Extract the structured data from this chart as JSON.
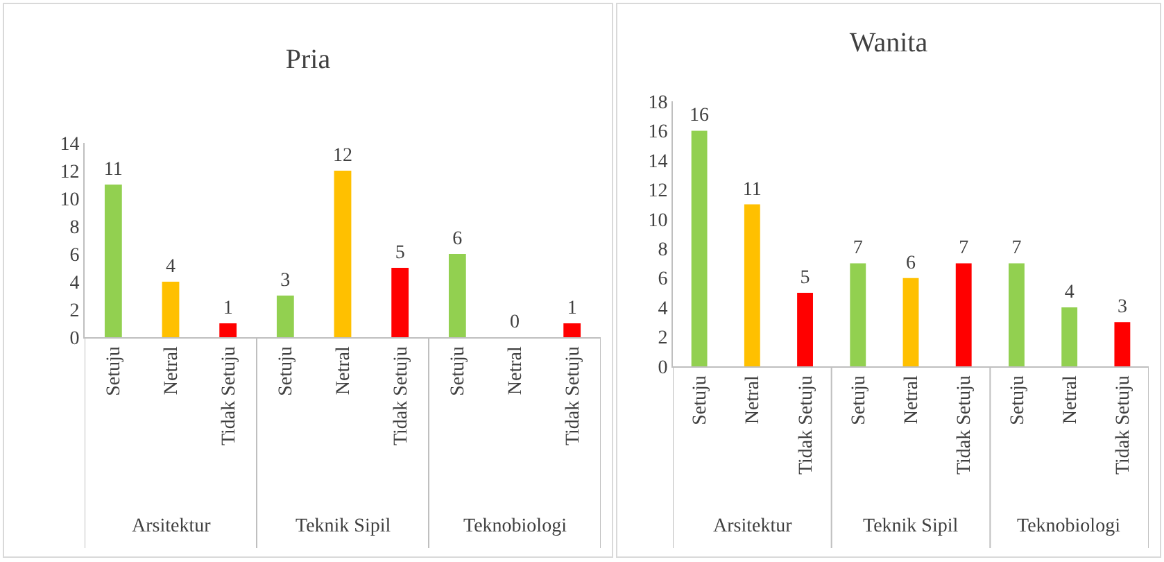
{
  "chart_data": [
    {
      "type": "bar",
      "title": "Pria",
      "categories": [
        "Setuju",
        "Netral",
        "Tidak Setuju",
        "Setuju",
        "Netral",
        "Tidak Setuju",
        "Setuju",
        "Netral",
        "Tidak Setuju"
      ],
      "values": [
        11,
        4,
        1,
        3,
        12,
        5,
        6,
        0,
        1
      ],
      "colors": [
        "#92d050",
        "#ffc000",
        "#ff0000",
        "#92d050",
        "#ffc000",
        "#ff0000",
        "#92d050",
        "#ffc000",
        "#ff0000"
      ],
      "ylim": [
        0,
        14
      ],
      "yticks": [
        0,
        2,
        4,
        6,
        8,
        10,
        12,
        14
      ],
      "grid": false,
      "data_labels": true,
      "annotations": [
        "Arsitektur",
        "Teknik Sipil",
        "Teknobiologi"
      ]
    },
    {
      "type": "bar",
      "title": "Wanita",
      "categories": [
        "Setuju",
        "Netral",
        "Tidak Setuju",
        "Setuju",
        "Netral",
        "Tidak Setuju",
        "Setuju",
        "Netral",
        "Tidak Setuju"
      ],
      "values": [
        16,
        11,
        5,
        7,
        6,
        7,
        7,
        4,
        3
      ],
      "colors": [
        "#92d050",
        "#ffc000",
        "#ff0000",
        "#92d050",
        "#ffc000",
        "#ff0000",
        "#92d050",
        "#92d050",
        "#ff0000"
      ],
      "ylim": [
        0,
        18
      ],
      "yticks": [
        0,
        2,
        4,
        6,
        8,
        10,
        12,
        14,
        16,
        18
      ],
      "grid": false,
      "data_labels": true,
      "annotations": [
        "Arsitektur",
        "Teknik Sipil",
        "Teknobiologi"
      ]
    }
  ]
}
